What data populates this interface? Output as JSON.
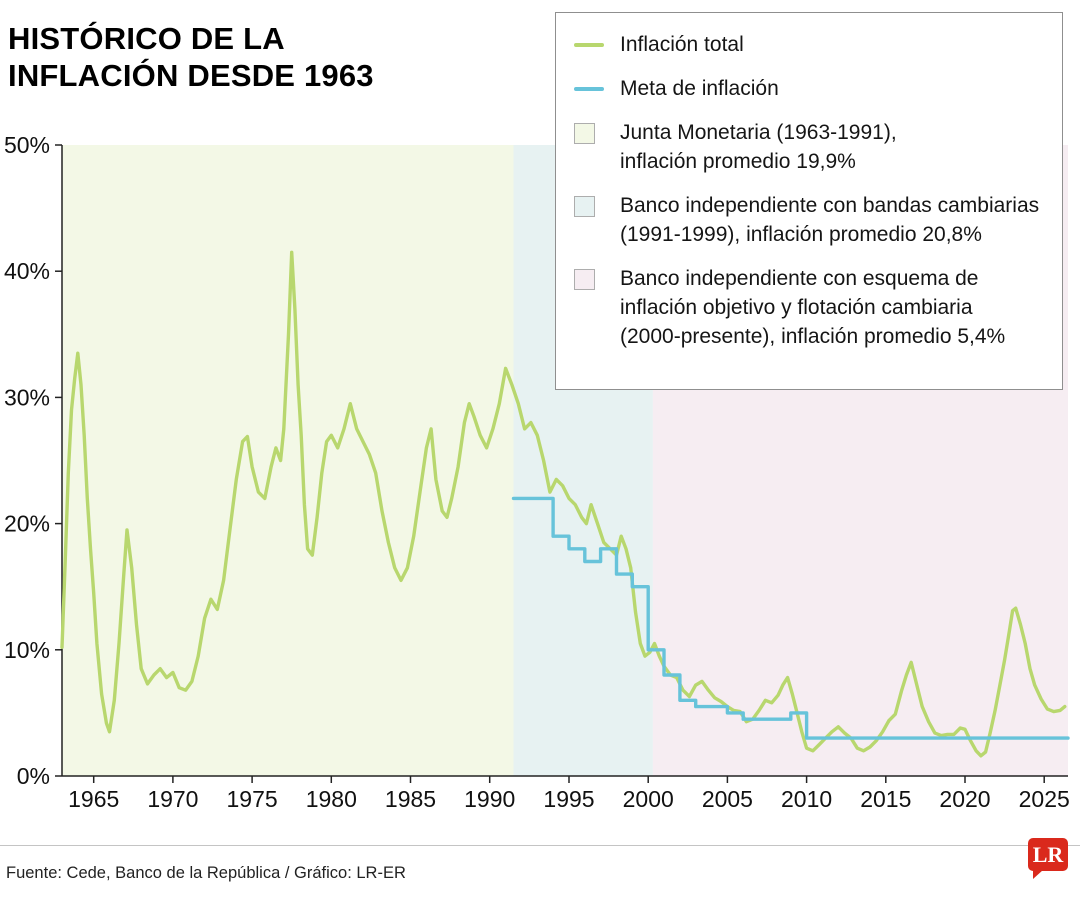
{
  "header": {
    "title": "HISTÓRICO DE LA\nINFLACIÓN DESDE 1963"
  },
  "legend": {
    "items": [
      {
        "type": "line",
        "color": "#b8d76e",
        "label": "Inflación total"
      },
      {
        "type": "line",
        "color": "#67c3da",
        "label": "Meta de inflación"
      },
      {
        "type": "box",
        "color": "#f3f8e6",
        "label": "Junta Monetaria (1963-1991),\ninflación promedio 19,9%"
      },
      {
        "type": "box",
        "color": "#e7f2f2",
        "label": "Banco independiente con bandas cambiarias\n(1991-1999), inflación promedio 20,8%"
      },
      {
        "type": "box",
        "color": "#f6edf2",
        "label": "Banco independiente con esquema de\ninflación objetivo y flotación cambiaria\n(2000-presente), inflación promedio 5,4%"
      }
    ]
  },
  "footer": {
    "source": "Fuente: Cede, Banco de la República / Gráfico: LR-ER",
    "logo_text": "LR"
  },
  "chart_data": {
    "type": "line",
    "title": "Histórico de la inflación desde 1963",
    "xlabel": "",
    "ylabel": "",
    "xlim": [
      1963,
      2026.5
    ],
    "ylim": [
      0,
      50
    ],
    "x_ticks": [
      1965,
      1970,
      1975,
      1980,
      1985,
      1990,
      1995,
      2000,
      2005,
      2010,
      2015,
      2020,
      2025
    ],
    "y_ticks": [
      0,
      10,
      20,
      30,
      40,
      50
    ],
    "y_tick_suffix": "%",
    "grid": false,
    "legend_position": "top-right",
    "regions": [
      {
        "name": "Junta Monetaria",
        "period": "1963-1991",
        "avg_inflation": "19,9%",
        "from": 1963,
        "to": 1991.5,
        "color": "#f3f8e6"
      },
      {
        "name": "Banco independiente con bandas cambiarias",
        "period": "1991-1999",
        "avg_inflation": "20,8%",
        "from": 1991.5,
        "to": 2000.3,
        "color": "#e7f2f2"
      },
      {
        "name": "Banco independiente con esquema de inflación objetivo y flotación cambiaria",
        "period": "2000-presente",
        "avg_inflation": "5,4%",
        "from": 2000.3,
        "to": 2026.5,
        "color": "#f6edf2"
      }
    ],
    "series": [
      {
        "name": "Inflación total",
        "color": "#b8d76e",
        "step": false,
        "points": [
          [
            1963.0,
            10.2
          ],
          [
            1963.2,
            17
          ],
          [
            1963.4,
            24
          ],
          [
            1963.6,
            29
          ],
          [
            1963.8,
            31.5
          ],
          [
            1964.0,
            33.5
          ],
          [
            1964.2,
            31
          ],
          [
            1964.4,
            27
          ],
          [
            1964.6,
            22
          ],
          [
            1964.8,
            18
          ],
          [
            1965.0,
            14.5
          ],
          [
            1965.2,
            10.5
          ],
          [
            1965.5,
            6.5
          ],
          [
            1965.8,
            4.2
          ],
          [
            1966.0,
            3.5
          ],
          [
            1966.3,
            6
          ],
          [
            1966.6,
            10.5
          ],
          [
            1966.9,
            16
          ],
          [
            1967.1,
            19.5
          ],
          [
            1967.4,
            16.5
          ],
          [
            1967.7,
            12
          ],
          [
            1968.0,
            8.5
          ],
          [
            1968.4,
            7.3
          ],
          [
            1968.8,
            8
          ],
          [
            1969.2,
            8.5
          ],
          [
            1969.6,
            7.8
          ],
          [
            1970.0,
            8.2
          ],
          [
            1970.4,
            7
          ],
          [
            1970.8,
            6.8
          ],
          [
            1971.2,
            7.5
          ],
          [
            1971.6,
            9.5
          ],
          [
            1972.0,
            12.5
          ],
          [
            1972.4,
            14
          ],
          [
            1972.8,
            13.2
          ],
          [
            1973.2,
            15.5
          ],
          [
            1973.6,
            19.5
          ],
          [
            1974.0,
            23.5
          ],
          [
            1974.4,
            26.5
          ],
          [
            1974.7,
            26.9
          ],
          [
            1975.0,
            24.5
          ],
          [
            1975.4,
            22.5
          ],
          [
            1975.8,
            22
          ],
          [
            1976.2,
            24.5
          ],
          [
            1976.5,
            26
          ],
          [
            1976.8,
            25
          ],
          [
            1977.0,
            27.5
          ],
          [
            1977.3,
            35
          ],
          [
            1977.5,
            41.5
          ],
          [
            1977.7,
            37
          ],
          [
            1977.9,
            31
          ],
          [
            1978.1,
            27
          ],
          [
            1978.3,
            21.5
          ],
          [
            1978.5,
            18
          ],
          [
            1978.8,
            17.5
          ],
          [
            1979.1,
            20.5
          ],
          [
            1979.4,
            24
          ],
          [
            1979.7,
            26.5
          ],
          [
            1980.0,
            27
          ],
          [
            1980.4,
            26
          ],
          [
            1980.8,
            27.5
          ],
          [
            1981.2,
            29.5
          ],
          [
            1981.6,
            27.5
          ],
          [
            1982.0,
            26.5
          ],
          [
            1982.4,
            25.5
          ],
          [
            1982.8,
            24
          ],
          [
            1983.2,
            21
          ],
          [
            1983.6,
            18.5
          ],
          [
            1984.0,
            16.5
          ],
          [
            1984.4,
            15.5
          ],
          [
            1984.8,
            16.5
          ],
          [
            1985.2,
            19
          ],
          [
            1985.6,
            22.5
          ],
          [
            1986.0,
            26
          ],
          [
            1986.3,
            27.5
          ],
          [
            1986.6,
            23.5
          ],
          [
            1987.0,
            21
          ],
          [
            1987.3,
            20.5
          ],
          [
            1987.6,
            22
          ],
          [
            1988.0,
            24.5
          ],
          [
            1988.4,
            28
          ],
          [
            1988.7,
            29.5
          ],
          [
            1989.0,
            28.5
          ],
          [
            1989.4,
            27
          ],
          [
            1989.8,
            26
          ],
          [
            1990.2,
            27.5
          ],
          [
            1990.6,
            29.5
          ],
          [
            1991.0,
            32.3
          ],
          [
            1991.4,
            31
          ],
          [
            1991.8,
            29.5
          ],
          [
            1992.2,
            27.5
          ],
          [
            1992.6,
            28
          ],
          [
            1993.0,
            27
          ],
          [
            1993.4,
            25
          ],
          [
            1993.8,
            22.5
          ],
          [
            1994.2,
            23.5
          ],
          [
            1994.6,
            23
          ],
          [
            1995.0,
            22
          ],
          [
            1995.4,
            21.5
          ],
          [
            1995.8,
            20.5
          ],
          [
            1996.1,
            20
          ],
          [
            1996.4,
            21.5
          ],
          [
            1996.8,
            20
          ],
          [
            1997.2,
            18.5
          ],
          [
            1997.6,
            18
          ],
          [
            1998.0,
            17.5
          ],
          [
            1998.3,
            19
          ],
          [
            1998.6,
            18
          ],
          [
            1998.9,
            16.5
          ],
          [
            1999.2,
            13
          ],
          [
            1999.5,
            10.5
          ],
          [
            1999.8,
            9.5
          ],
          [
            2000.1,
            9.8
          ],
          [
            2000.4,
            10.5
          ],
          [
            2000.7,
            9.5
          ],
          [
            2001.0,
            8.7
          ],
          [
            2001.4,
            8
          ],
          [
            2001.8,
            7.8
          ],
          [
            2002.2,
            6.8
          ],
          [
            2002.6,
            6.3
          ],
          [
            2003.0,
            7.2
          ],
          [
            2003.4,
            7.5
          ],
          [
            2003.8,
            6.8
          ],
          [
            2004.2,
            6.2
          ],
          [
            2004.6,
            5.9
          ],
          [
            2005.0,
            5.5
          ],
          [
            2005.4,
            5.2
          ],
          [
            2005.8,
            5.1
          ],
          [
            2006.2,
            4.3
          ],
          [
            2006.6,
            4.5
          ],
          [
            2007.0,
            5.2
          ],
          [
            2007.4,
            6
          ],
          [
            2007.8,
            5.8
          ],
          [
            2008.2,
            6.4
          ],
          [
            2008.5,
            7.2
          ],
          [
            2008.8,
            7.8
          ],
          [
            2009.1,
            6.5
          ],
          [
            2009.4,
            5
          ],
          [
            2009.7,
            3.5
          ],
          [
            2010.0,
            2.2
          ],
          [
            2010.4,
            2
          ],
          [
            2010.8,
            2.5
          ],
          [
            2011.2,
            3
          ],
          [
            2011.6,
            3.5
          ],
          [
            2012.0,
            3.9
          ],
          [
            2012.4,
            3.4
          ],
          [
            2012.8,
            3
          ],
          [
            2013.2,
            2.2
          ],
          [
            2013.6,
            2
          ],
          [
            2014.0,
            2.3
          ],
          [
            2014.4,
            2.8
          ],
          [
            2014.8,
            3.5
          ],
          [
            2015.2,
            4.4
          ],
          [
            2015.6,
            4.9
          ],
          [
            2016.0,
            6.8
          ],
          [
            2016.3,
            8
          ],
          [
            2016.6,
            9
          ],
          [
            2016.9,
            7.5
          ],
          [
            2017.3,
            5.5
          ],
          [
            2017.7,
            4.3
          ],
          [
            2018.1,
            3.4
          ],
          [
            2018.5,
            3.2
          ],
          [
            2018.9,
            3.3
          ],
          [
            2019.3,
            3.3
          ],
          [
            2019.7,
            3.8
          ],
          [
            2020.0,
            3.7
          ],
          [
            2020.3,
            2.9
          ],
          [
            2020.7,
            2
          ],
          [
            2021.0,
            1.6
          ],
          [
            2021.3,
            1.9
          ],
          [
            2021.6,
            3.5
          ],
          [
            2021.9,
            5.2
          ],
          [
            2022.2,
            7.2
          ],
          [
            2022.5,
            9.2
          ],
          [
            2022.8,
            11.5
          ],
          [
            2023.0,
            13.1
          ],
          [
            2023.2,
            13.3
          ],
          [
            2023.5,
            12
          ],
          [
            2023.8,
            10.5
          ],
          [
            2024.1,
            8.5
          ],
          [
            2024.4,
            7.2
          ],
          [
            2024.8,
            6.1
          ],
          [
            2025.2,
            5.3
          ],
          [
            2025.6,
            5.1
          ],
          [
            2026.0,
            5.2
          ],
          [
            2026.3,
            5.5
          ]
        ]
      },
      {
        "name": "Meta de inflación",
        "color": "#67c3da",
        "step": true,
        "points": [
          [
            1991.5,
            22
          ],
          [
            1994,
            19
          ],
          [
            1995,
            18
          ],
          [
            1996,
            17
          ],
          [
            1997,
            18
          ],
          [
            1998,
            16
          ],
          [
            1999,
            15
          ],
          [
            2000,
            10
          ],
          [
            2001,
            8
          ],
          [
            2002,
            6
          ],
          [
            2003,
            5.5
          ],
          [
            2005,
            5
          ],
          [
            2006,
            4.5
          ],
          [
            2009,
            5
          ],
          [
            2010,
            3
          ]
        ]
      }
    ]
  }
}
